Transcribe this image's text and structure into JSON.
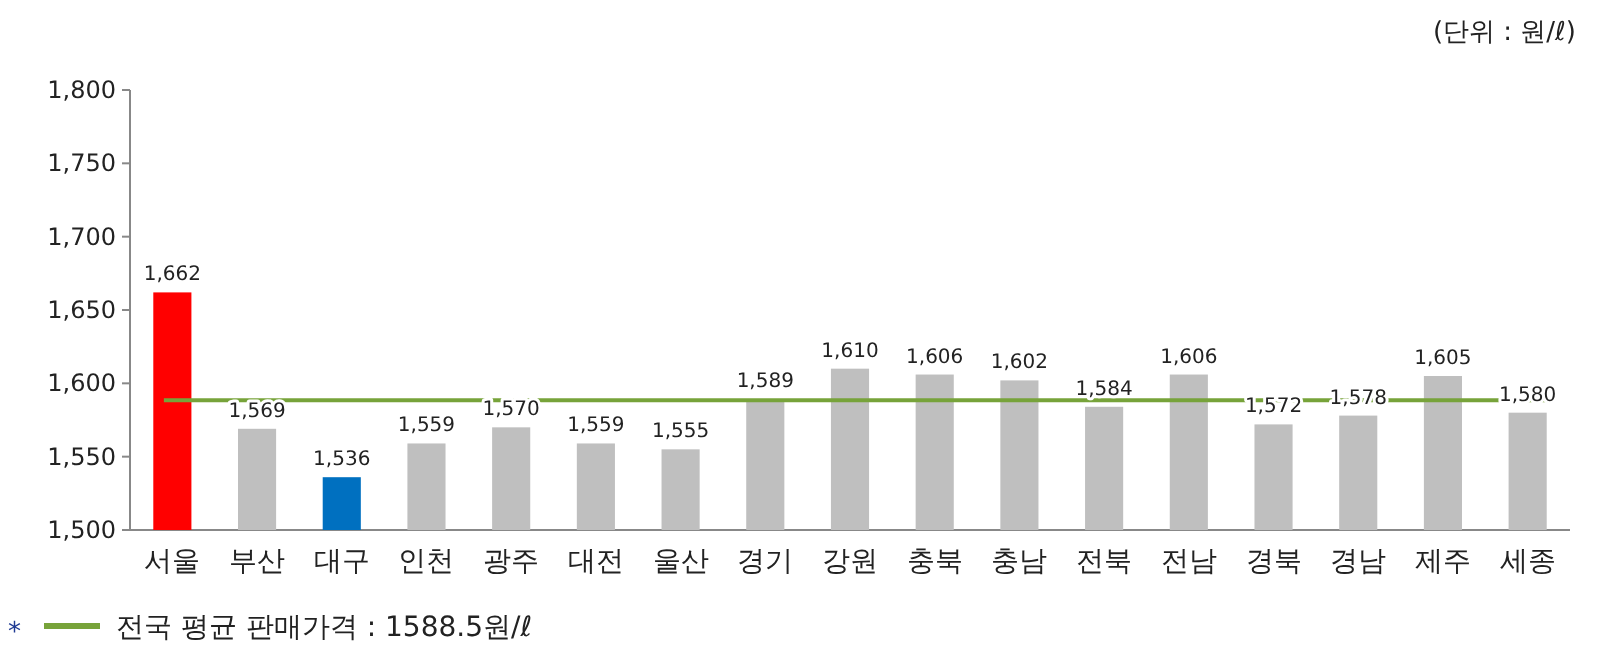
{
  "chart_data": {
    "type": "bar",
    "categories": [
      "서울",
      "부산",
      "대구",
      "인천",
      "광주",
      "대전",
      "울산",
      "경기",
      "강원",
      "충북",
      "충남",
      "전북",
      "전남",
      "경북",
      "경남",
      "제주",
      "세종"
    ],
    "values": [
      1662,
      1569,
      1536,
      1559,
      1570,
      1559,
      1555,
      1589,
      1610,
      1606,
      1602,
      1584,
      1606,
      1572,
      1578,
      1605,
      1580
    ],
    "colors": [
      "#ff0000",
      "#bfbfbf",
      "#0070c0",
      "#bfbfbf",
      "#bfbfbf",
      "#bfbfbf",
      "#bfbfbf",
      "#bfbfbf",
      "#bfbfbf",
      "#bfbfbf",
      "#bfbfbf",
      "#bfbfbf",
      "#bfbfbf",
      "#bfbfbf",
      "#bfbfbf",
      "#bfbfbf",
      "#bfbfbf"
    ],
    "value_labels": [
      "1,662",
      "1,569",
      "1,536",
      "1,559",
      "1,570",
      "1,559",
      "1,555",
      "1,589",
      "1,610",
      "1,606",
      "1,602",
      "1,584",
      "1,606",
      "1,572",
      "1,578",
      "1,605",
      "1,580"
    ],
    "ylim": [
      1500,
      1800
    ],
    "yticks": [
      {
        "value": 1500,
        "label": "1,500"
      },
      {
        "value": 1550,
        "label": "1,550"
      },
      {
        "value": 1600,
        "label": "1,600"
      },
      {
        "value": 1650,
        "label": "1,650"
      },
      {
        "value": 1700,
        "label": "1,700"
      },
      {
        "value": 1750,
        "label": "1,750"
      },
      {
        "value": 1800,
        "label": "1,800"
      }
    ],
    "ref_lines": [
      {
        "axis": "y",
        "value": 1588.5,
        "label": "전국 평균 판매가격 : 1588.5원/ℓ",
        "color": "#77a33a"
      }
    ],
    "annotations": [
      "(단위 : 원/ℓ)",
      "*"
    ]
  }
}
